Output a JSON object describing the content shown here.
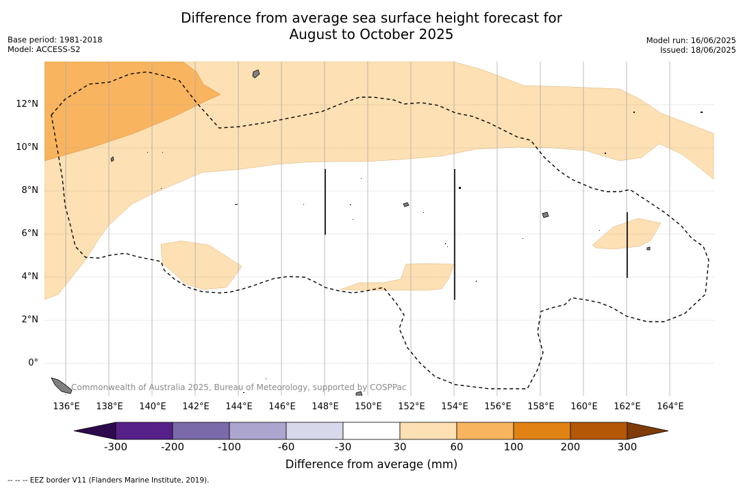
{
  "header": {
    "title_line1": "Difference from average sea surface height forecast for",
    "title_line2": "August to October 2025",
    "base_period": "Base period: 1981-2018",
    "model": "Model: ACCESS-S2",
    "model_run": "Model run: 16/06/2025",
    "issued": "Issued: 18/06/2025"
  },
  "map": {
    "lon_labels": [
      "136°E",
      "138°E",
      "140°E",
      "142°E",
      "144°E",
      "146°E",
      "148°E",
      "150°E",
      "152°E",
      "154°E",
      "156°E",
      "158°E",
      "160°E",
      "162°E",
      "164°E"
    ],
    "lat_labels": [
      "12°N",
      "10°N",
      "8°N",
      "6°N",
      "4°N",
      "2°N",
      "0°"
    ],
    "lon_range": [
      135,
      166
    ],
    "lat_range": [
      -1.5,
      14
    ],
    "copyright": "Commonwealth of Australia 2025, Bureau of Meteorology, supported by COSPPac",
    "colors": {
      "band_30_60": "#fde0b3",
      "band_60_100": "#f9b45f",
      "land": "#808080",
      "eez": "#000000",
      "grid": "#999999"
    }
  },
  "colorbar": {
    "ticks": [
      "-300",
      "-200",
      "-100",
      "-60",
      "-30",
      "30",
      "60",
      "100",
      "200",
      "300"
    ],
    "colors": [
      "#2d0a4e",
      "#552188",
      "#7a6aaa",
      "#aca6cf",
      "#d8d8eb",
      "#ffffff",
      "#fde0b3",
      "#f9b45f",
      "#e08214",
      "#b35806",
      "#7f3b08"
    ],
    "label": "Difference from average (mm)"
  },
  "footnote": "--  --  -- EEZ border V11 (Flanders Marine Institute, 2019)."
}
